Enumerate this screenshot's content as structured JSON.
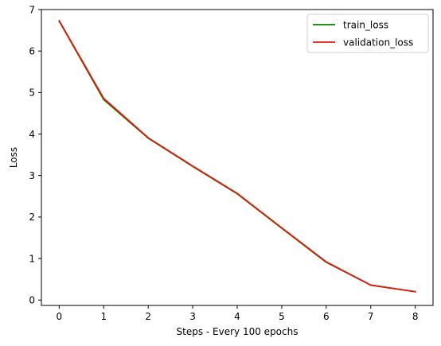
{
  "chart_data": {
    "type": "line",
    "title": "",
    "xlabel": "Steps - Every 100 epochs",
    "ylabel": "Loss",
    "x": [
      0,
      1,
      2,
      3,
      4,
      5,
      6,
      7,
      8
    ],
    "xlim": [
      -0.4,
      8.4
    ],
    "ylim": [
      -0.13,
      7.0
    ],
    "xticks": [
      "0",
      "1",
      "2",
      "3",
      "4",
      "5",
      "6",
      "7",
      "8"
    ],
    "yticks": [
      "0",
      "1",
      "2",
      "3",
      "4",
      "5",
      "6",
      "7"
    ],
    "grid": false,
    "legend_position": "upper right",
    "series": [
      {
        "name": "train_loss",
        "color": "#008000",
        "values": [
          6.72,
          4.83,
          3.9,
          3.22,
          2.56,
          1.73,
          0.91,
          0.36,
          0.2
        ]
      },
      {
        "name": "validation_loss",
        "color": "#e01a0b",
        "values": [
          6.73,
          4.86,
          3.91,
          3.23,
          2.57,
          1.74,
          0.92,
          0.36,
          0.2
        ]
      }
    ]
  }
}
